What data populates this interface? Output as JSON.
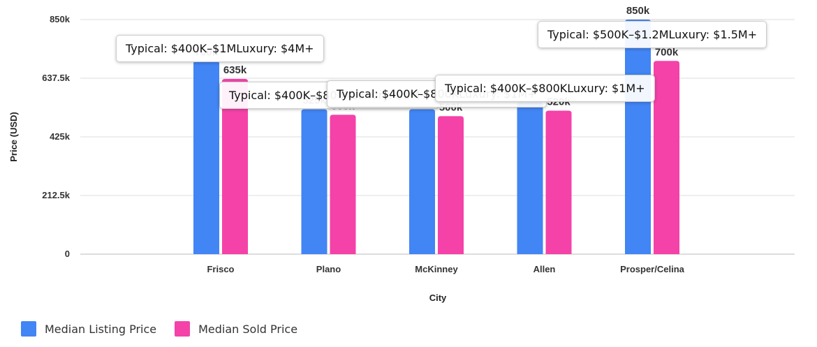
{
  "chart_data": {
    "type": "bar",
    "xlabel": "City",
    "ylabel": "Price (USD)",
    "ylim": [
      0,
      850000
    ],
    "yticks": [
      {
        "value": 0,
        "label": "0"
      },
      {
        "value": 212500,
        "label": "212.5k"
      },
      {
        "value": 425000,
        "label": "425k"
      },
      {
        "value": 637500,
        "label": "637.5k"
      },
      {
        "value": 850000,
        "label": "850k"
      }
    ],
    "categories": [
      "Frisco",
      "Plano",
      "McKinney",
      "Allen",
      "Prosper/Celina"
    ],
    "series": [
      {
        "name": "Median Listing Price",
        "color": "#4285f4",
        "values": [
          700000,
          525000,
          525000,
          550000,
          850000
        ],
        "labels": [
          "700k",
          "525k",
          "525k",
          "550k",
          "850k"
        ]
      },
      {
        "name": "Median Sold Price",
        "color": "#f442a8",
        "values": [
          635000,
          505000,
          500000,
          520000,
          700000
        ],
        "labels": [
          "635k",
          "505k",
          "500k",
          "520k",
          "700k"
        ]
      }
    ],
    "grid": true,
    "legend": "bottom-left",
    "tooltips": [
      {
        "category": "Frisco",
        "text": "Typical: $400K–$1MLuxury: $4M+"
      },
      {
        "category": "Plano",
        "text": "Typical: $400K–$800KLuxury: $1M+"
      },
      {
        "category": "McKinney",
        "text": "Typical: $400K–$800KLuxury: $1M+"
      },
      {
        "category": "Allen",
        "text": "Typical: $400K–$800KLuxury: $1M+"
      },
      {
        "category": "Prosper/Celina",
        "text": "Typical: $500K–$1.2MLuxury: $1.5M+"
      }
    ]
  }
}
